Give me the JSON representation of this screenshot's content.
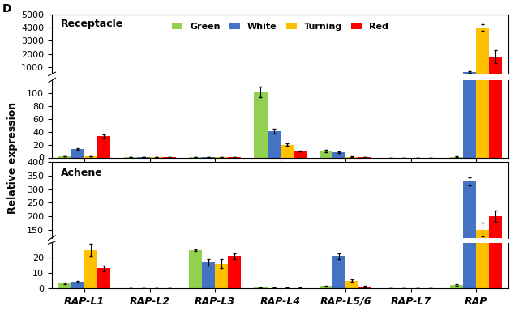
{
  "chart_data": {
    "type": "bar",
    "panel_label": "D",
    "y_label": "Relative expression",
    "legend": "upper center",
    "categories": [
      "RAP-L1",
      "RAP-L2",
      "RAP-L3",
      "RAP-L4",
      "RAP-L5/6",
      "RAP-L7",
      "RAP"
    ],
    "panels": [
      {
        "title": "Receptacle",
        "y_segments": [
          {
            "ylim": [
              0,
              120
            ],
            "yticks": [
              0,
              20,
              40,
              60,
              80,
              100
            ]
          },
          {
            "ylim": [
              500,
              5000
            ],
            "yticks": [
              1000,
              2000,
              3000,
              4000,
              5000
            ]
          }
        ],
        "series": [
          {
            "name": "Green",
            "color": "#92d050",
            "values": [
              2,
              0.3,
              0.3,
              102,
              10,
              0,
              1
            ],
            "errors": [
              0.5,
              0.1,
              0.1,
              8,
              1.5,
              0,
              0.3
            ]
          },
          {
            "name": "White",
            "color": "#4472c4",
            "values": [
              13,
              0.3,
              0.3,
              41,
              8,
              0,
              650
            ],
            "errors": [
              1.5,
              0.1,
              0.1,
              4,
              1,
              0,
              50
            ]
          },
          {
            "name": "Turning",
            "color": "#ffc000",
            "values": [
              2,
              0.3,
              0.3,
              20,
              1,
              0,
              4000
            ],
            "errors": [
              0.5,
              0.1,
              0.1,
              2,
              0.3,
              0,
              250
            ]
          },
          {
            "name": "Red",
            "color": "#ff0000",
            "values": [
              33,
              0.3,
              0.3,
              10,
              0.5,
              0,
              1800
            ],
            "errors": [
              3,
              0.1,
              0.1,
              1,
              0.2,
              0,
              500
            ]
          }
        ]
      },
      {
        "title": "Achene",
        "y_segments": [
          {
            "ylim": [
              0,
              30
            ],
            "yticks": [
              0,
              10,
              20
            ]
          },
          {
            "ylim": [
              120,
              400
            ],
            "yticks": [
              150,
              200,
              250,
              300,
              350,
              400
            ]
          }
        ],
        "series": [
          {
            "name": "Green",
            "color": "#92d050",
            "values": [
              3,
              0,
              25,
              0.3,
              1.5,
              0,
              2
            ],
            "errors": [
              0.5,
              0,
              0.5,
              0.1,
              0.3,
              0,
              0.5
            ]
          },
          {
            "name": "White",
            "color": "#4472c4",
            "values": [
              4,
              0,
              17,
              0.2,
              21,
              0,
              330
            ],
            "errors": [
              0.5,
              0,
              2,
              0.1,
              2,
              0,
              15
            ]
          },
          {
            "name": "Turning",
            "color": "#ffc000",
            "values": [
              25,
              0,
              16,
              0.2,
              5,
              0,
              150
            ],
            "errors": [
              4,
              0,
              3,
              0.1,
              1,
              0,
              25
            ]
          },
          {
            "name": "Red",
            "color": "#ff0000",
            "values": [
              13,
              0,
              21,
              0.2,
              1,
              0,
              200
            ],
            "errors": [
              2,
              0,
              2,
              0.1,
              0.3,
              0,
              20
            ]
          }
        ]
      }
    ]
  }
}
